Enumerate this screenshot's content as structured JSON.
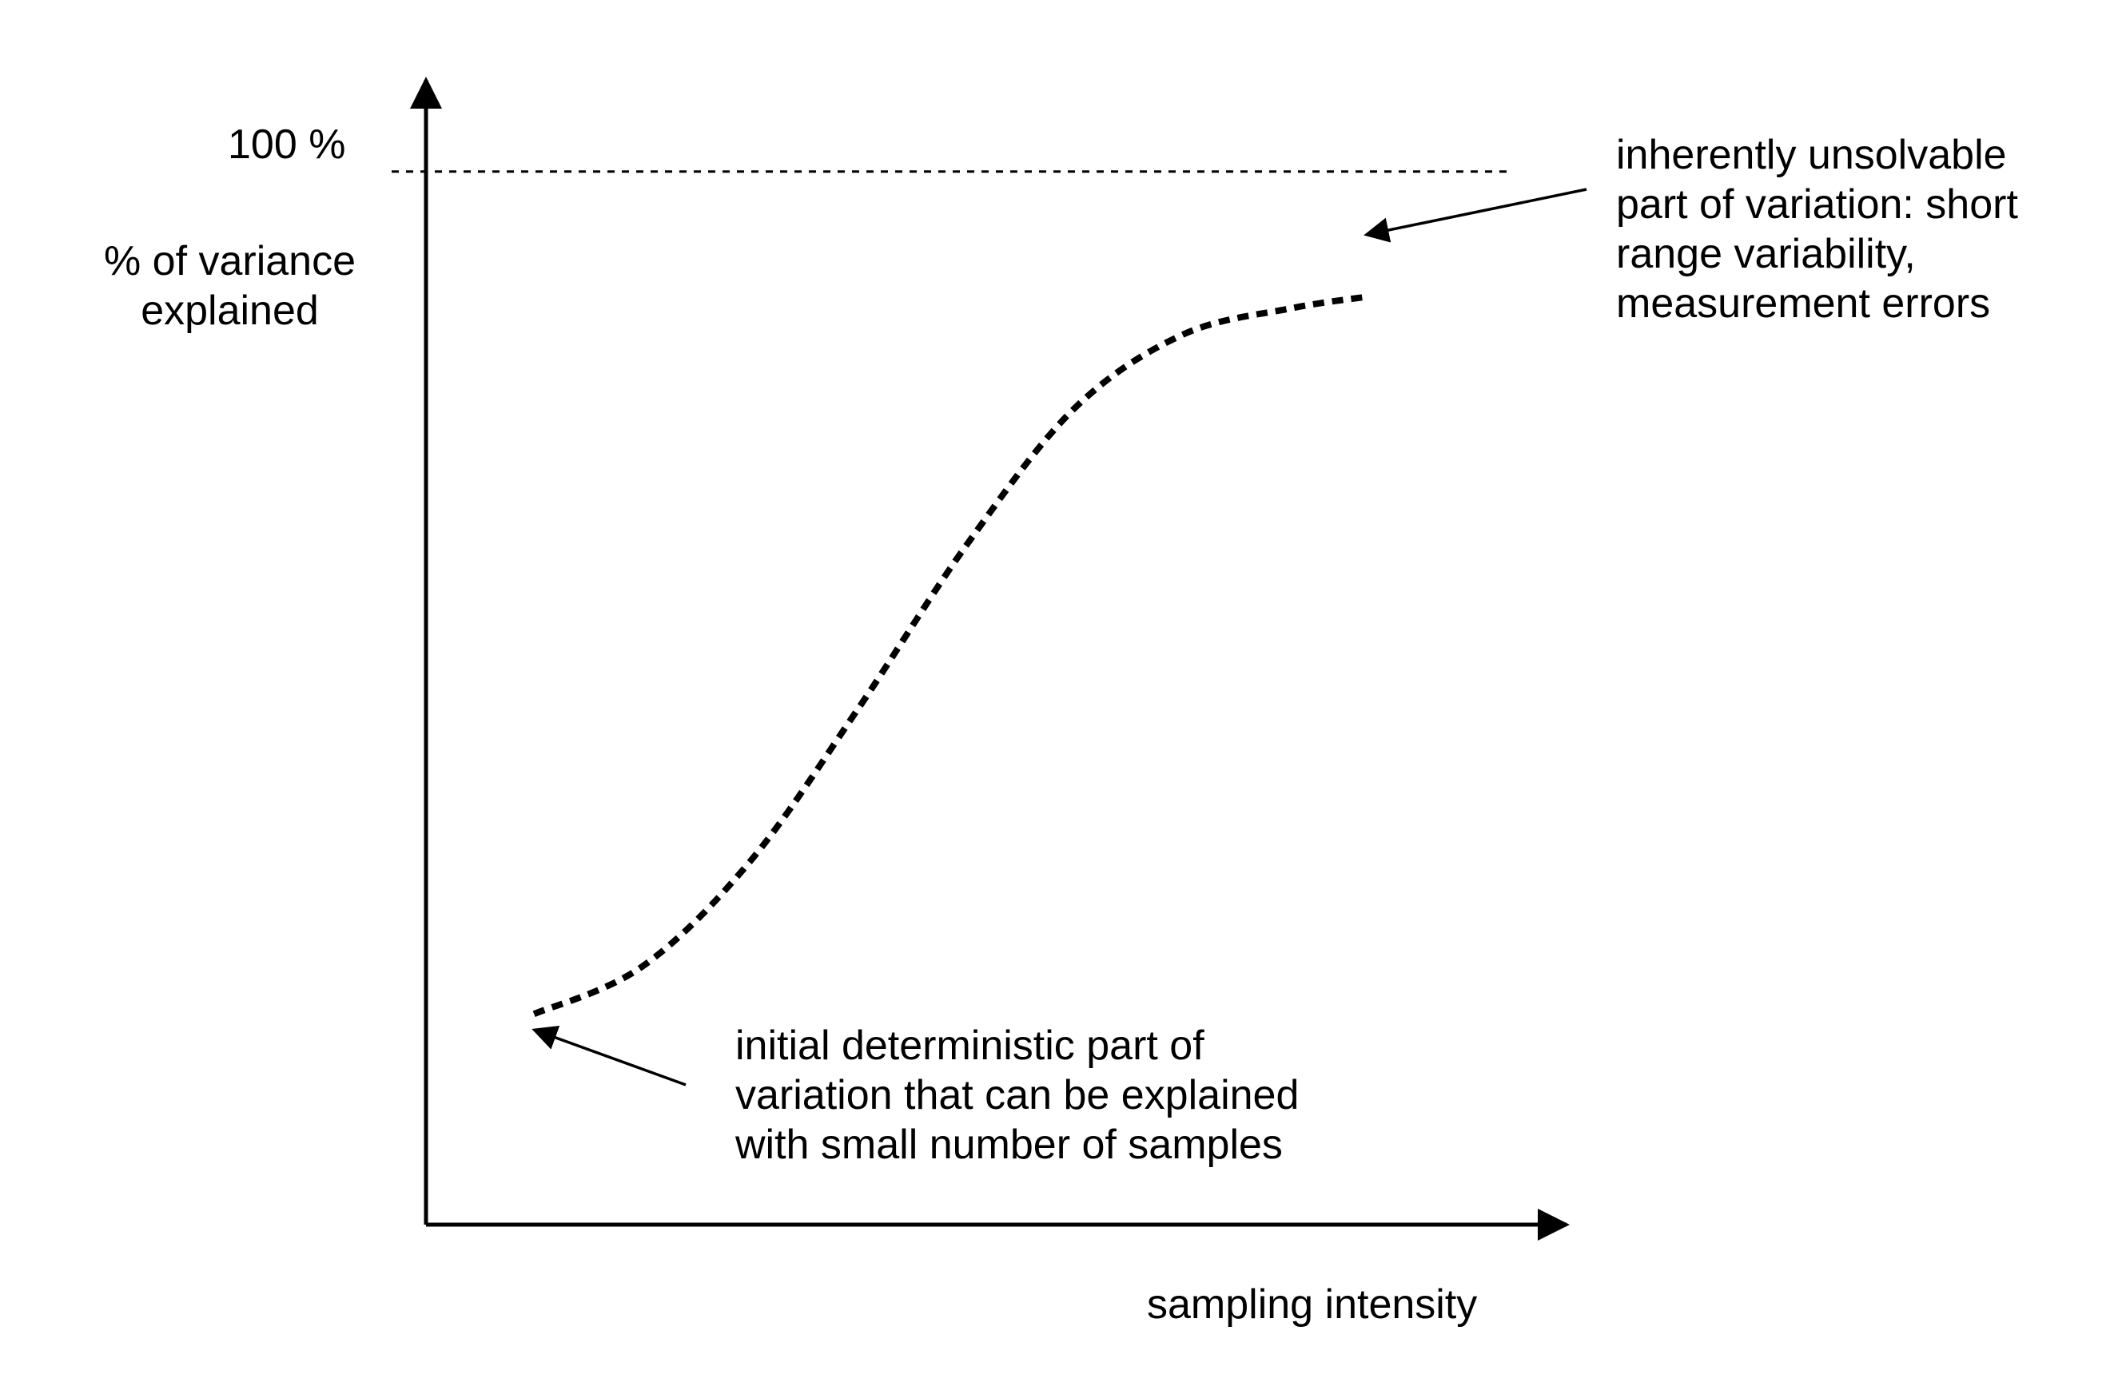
{
  "colors": {
    "background": "#ffffff",
    "ink": "#000000"
  },
  "chart_data": {
    "type": "line",
    "title": "",
    "xlabel": "sampling intensity",
    "ylabel_lines": [
      "% of variance",
      "explained"
    ],
    "y_ticks": [
      {
        "value": 100,
        "label": "100 %"
      }
    ],
    "reference_line": {
      "y": 100,
      "style": "dotted"
    },
    "grid": false,
    "legend": "none",
    "xlim": [
      0,
      100
    ],
    "ylim": [
      0,
      104
    ],
    "series": [
      {
        "line_style": "dashed",
        "points": [
          {
            "x": 10,
            "y": 20.0
          },
          {
            "x": 20,
            "y": 24.5
          },
          {
            "x": 30,
            "y": 34.5
          },
          {
            "x": 40,
            "y": 49.0
          },
          {
            "x": 50,
            "y": 64.5
          },
          {
            "x": 60,
            "y": 77.5
          },
          {
            "x": 70,
            "y": 84.5
          },
          {
            "x": 80,
            "y": 87.0
          },
          {
            "x": 87,
            "y": 88.1
          }
        ]
      }
    ],
    "annotations": [
      {
        "id": "top",
        "lines": [
          "inherently unsolvable",
          "part of variation: short",
          "range variability,",
          "measurement errors"
        ],
        "arrow_to": {
          "x": 87,
          "y": 94
        }
      },
      {
        "id": "bottom",
        "lines": [
          "initial deterministic part of",
          "variation that can be explained",
          "with small number of samples"
        ],
        "arrow_to": {
          "x": 10,
          "y": 18.5
        }
      }
    ]
  }
}
